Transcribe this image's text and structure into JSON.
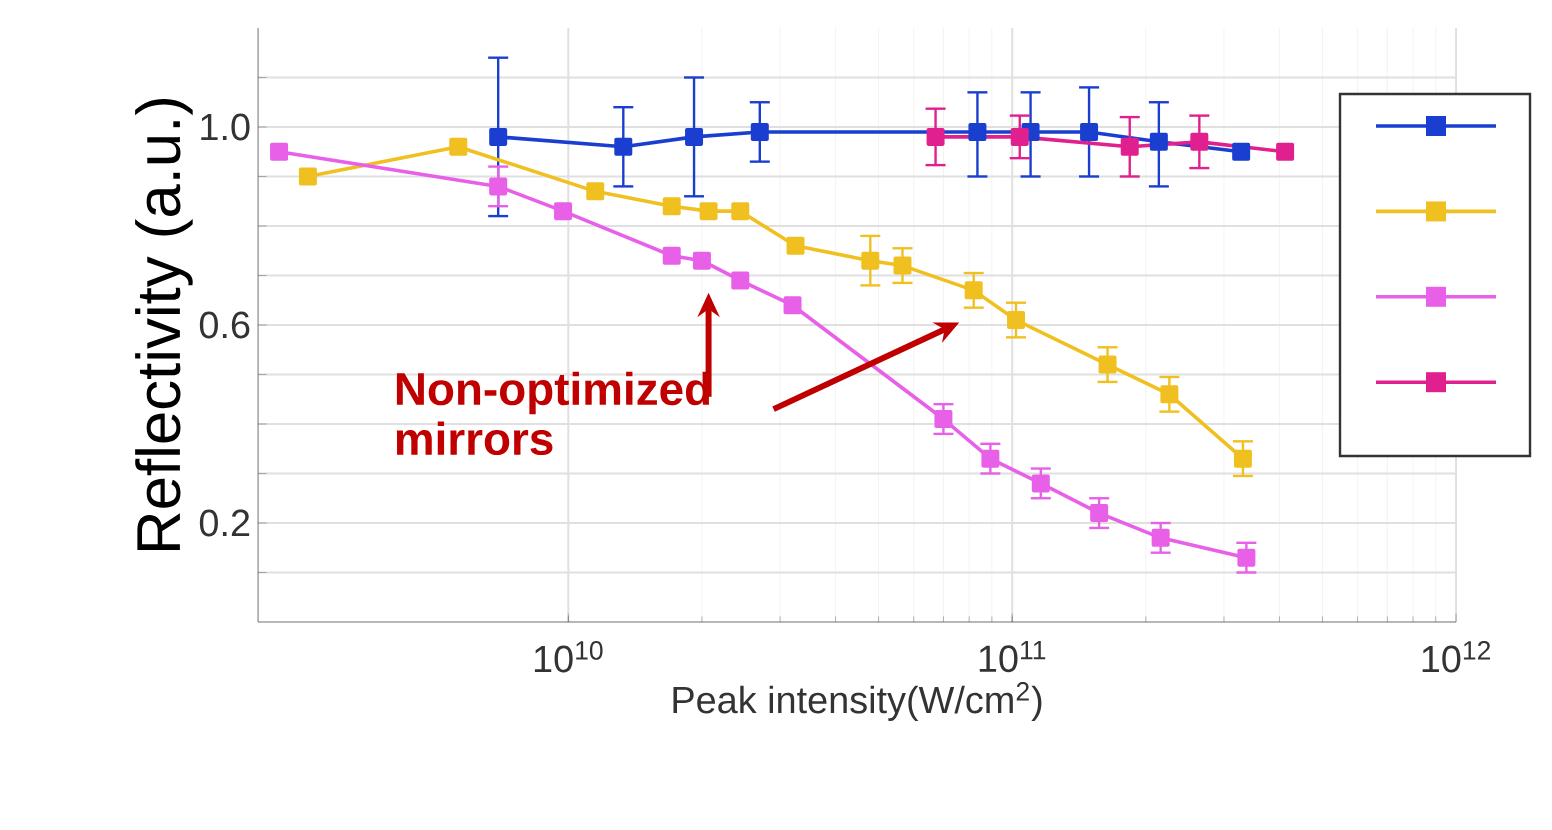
{
  "chart_data": {
    "type": "line",
    "xlabel": "Peak intensity(W/cm$^{2}$)",
    "ylabel": "Reflectivity (a.u.)",
    "annotations": [
      "Non-optimized mirrors"
    ],
    "log": "x",
    "grid": true,
    "marker": "square",
    "line_style": "solid",
    "xlim": [
      2000000000.0,
      1000000000000.0
    ],
    "ylim": [
      0,
      1.2
    ],
    "xticks": [
      {
        "value": 10000000000.0,
        "label": "10$^{10}$"
      },
      {
        "value": 100000000000.0,
        "label": "10$^{11}$"
      },
      {
        "value": 1000000000000.0,
        "label": "10$^{12}$"
      }
    ],
    "yticks": [
      {
        "value": 0.1,
        "label": null
      },
      0.2,
      {
        "value": 0.3,
        "label": null
      },
      {
        "value": 0.4,
        "label": null
      },
      {
        "value": 0.5,
        "label": null
      },
      0.6,
      {
        "value": 0.7,
        "label": null
      },
      {
        "value": 0.8,
        "label": null
      },
      {
        "value": 0.9,
        "label": null
      },
      {
        "value": 1.0,
        "label": "1.0"
      },
      {
        "value": 1.1,
        "label": null
      }
    ],
    "series": [
      {
        "color": "#1a3fd0",
        "x": [
          6950000000.0,
          13300000000.0,
          19200000000.0,
          27000000000.0,
          67200000000.0,
          83500000000.0,
          110000000000.0,
          149000000000.0,
          214000000000.0,
          328000000000.0
        ],
        "values": [
          0.98,
          0.96,
          0.98,
          0.99,
          null,
          0.99,
          0.99,
          0.99,
          0.97,
          0.95
        ],
        "errors": [
          [
            0.82,
            1.14
          ],
          [
            0.88,
            1.04
          ],
          [
            0.86,
            1.1
          ],
          [
            0.93,
            1.05
          ],
          null,
          [
            0.9,
            1.07
          ],
          [
            0.9,
            1.07
          ],
          [
            0.9,
            1.08
          ],
          [
            0.88,
            1.05
          ],
          null
        ]
      },
      {
        "color": "#f0c020",
        "x": [
          2590000000.0,
          5650000000.0,
          11500000000.0,
          17100000000.0,
          20700000000.0,
          24400000000.0,
          32500000000.0,
          47900000000.0,
          56600000000.0,
          81900000000.0,
          102000000000.0,
          164000000000.0,
          226000000000.0,
          331000000000.0
        ],
        "values": [
          0.9,
          0.96,
          0.87,
          0.84,
          0.83,
          0.83,
          0.76,
          0.73,
          0.72,
          0.67,
          0.61,
          0.52,
          0.46,
          0.33
        ],
        "errors": [
          null,
          null,
          null,
          null,
          null,
          null,
          null,
          0.05,
          0.035,
          0.035,
          0.035,
          0.035,
          0.035,
          0.035
        ]
      },
      {
        "color": "#e860e8",
        "x": [
          2230000000.0,
          6950000000.0,
          9730000000.0,
          17100000000.0,
          20000000000.0,
          24400000000.0,
          32000000000.0,
          70000000000.0,
          89300000000.0,
          116000000000.0,
          157000000000.0,
          216000000000.0,
          337000000000.0
        ],
        "values": [
          0.95,
          0.88,
          0.83,
          0.74,
          0.73,
          0.69,
          0.64,
          0.41,
          0.33,
          0.28,
          0.22,
          0.17,
          0.13
        ],
        "errors": [
          null,
          0.04,
          null,
          null,
          null,
          null,
          null,
          0.03,
          0.03,
          0.03,
          0.03,
          0.03,
          0.03
        ]
      },
      {
        "color": "#e0208f",
        "x": [
          67200000000.0,
          104000000000.0,
          184000000000.0,
          264000000000.0,
          412000000000.0
        ],
        "values": [
          0.98,
          0.98,
          0.96,
          0.97,
          0.95
        ],
        "errors": [
          0.057,
          0.043,
          0.06,
          0.053,
          null
        ]
      }
    ]
  }
}
